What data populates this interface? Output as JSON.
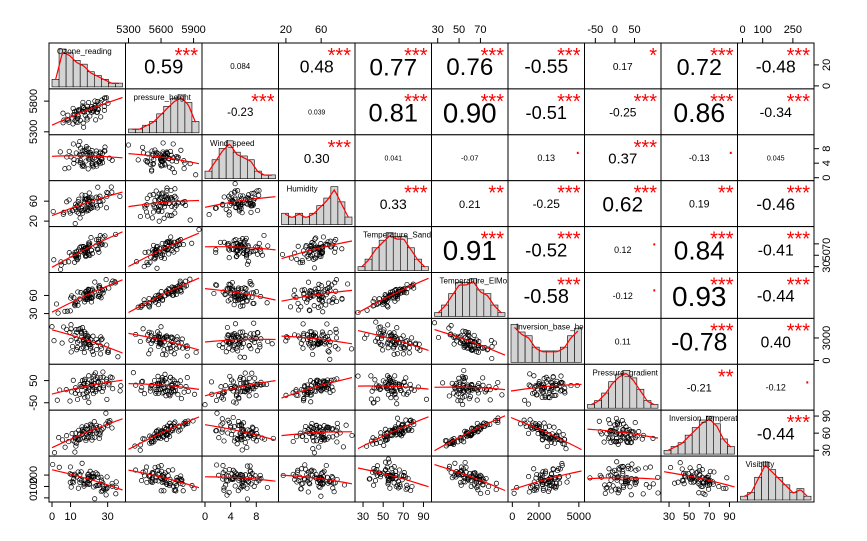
{
  "chart_data": {
    "type": "scatter",
    "variables": [
      "Ozone_reading",
      "pressure_height",
      "Wind_speed",
      "Humidity",
      "Temperature_Sandburg",
      "Temperature_ElMonte",
      "Inversion_base_height",
      "Pressure_gradient",
      "Inversion_temperature",
      "Visibility"
    ],
    "ranges": [
      [
        0,
        38
      ],
      [
        5300,
        5950
      ],
      [
        0,
        11
      ],
      [
        15,
        95
      ],
      [
        25,
        95
      ],
      [
        27,
        93
      ],
      [
        -100,
        5200
      ],
      [
        -70,
        110
      ],
      [
        25,
        95
      ],
      [
        -10,
        340
      ]
    ],
    "correlations": [
      {
        "row": 0,
        "col": 1,
        "r": "0.59",
        "sig": "***"
      },
      {
        "row": 0,
        "col": 2,
        "r": "0.084",
        "sig": ""
      },
      {
        "row": 0,
        "col": 3,
        "r": "0.48",
        "sig": "***"
      },
      {
        "row": 0,
        "col": 4,
        "r": "0.77",
        "sig": "***"
      },
      {
        "row": 0,
        "col": 5,
        "r": "0.76",
        "sig": "***"
      },
      {
        "row": 0,
        "col": 6,
        "r": "-0.55",
        "sig": "***"
      },
      {
        "row": 0,
        "col": 7,
        "r": "0.17",
        "sig": "*"
      },
      {
        "row": 0,
        "col": 8,
        "r": "0.72",
        "sig": "***"
      },
      {
        "row": 0,
        "col": 9,
        "r": "-0.48",
        "sig": "***"
      },
      {
        "row": 1,
        "col": 2,
        "r": "-0.23",
        "sig": "***"
      },
      {
        "row": 1,
        "col": 3,
        "r": "0.039",
        "sig": ""
      },
      {
        "row": 1,
        "col": 4,
        "r": "0.81",
        "sig": "***"
      },
      {
        "row": 1,
        "col": 5,
        "r": "0.90",
        "sig": "***"
      },
      {
        "row": 1,
        "col": 6,
        "r": "-0.51",
        "sig": "***"
      },
      {
        "row": 1,
        "col": 7,
        "r": "-0.25",
        "sig": "***"
      },
      {
        "row": 1,
        "col": 8,
        "r": "0.86",
        "sig": "***"
      },
      {
        "row": 1,
        "col": 9,
        "r": "-0.34",
        "sig": "***"
      },
      {
        "row": 2,
        "col": 3,
        "r": "0.30",
        "sig": "***"
      },
      {
        "row": 2,
        "col": 4,
        "r": "0.041",
        "sig": ""
      },
      {
        "row": 2,
        "col": 5,
        "r": "-0.07",
        "sig": ""
      },
      {
        "row": 2,
        "col": 6,
        "r": "0.13",
        "sig": "."
      },
      {
        "row": 2,
        "col": 7,
        "r": "0.37",
        "sig": "***"
      },
      {
        "row": 2,
        "col": 8,
        "r": "-0.13",
        "sig": "."
      },
      {
        "row": 2,
        "col": 9,
        "r": "0.045",
        "sig": ""
      },
      {
        "row": 3,
        "col": 4,
        "r": "0.33",
        "sig": "***"
      },
      {
        "row": 3,
        "col": 5,
        "r": "0.21",
        "sig": "**"
      },
      {
        "row": 3,
        "col": 6,
        "r": "-0.25",
        "sig": "***"
      },
      {
        "row": 3,
        "col": 7,
        "r": "0.62",
        "sig": "***"
      },
      {
        "row": 3,
        "col": 8,
        "r": "0.19",
        "sig": "**"
      },
      {
        "row": 3,
        "col": 9,
        "r": "-0.46",
        "sig": "***"
      },
      {
        "row": 4,
        "col": 5,
        "r": "0.91",
        "sig": "***"
      },
      {
        "row": 4,
        "col": 6,
        "r": "-0.52",
        "sig": "***"
      },
      {
        "row": 4,
        "col": 7,
        "r": "0.12",
        "sig": "."
      },
      {
        "row": 4,
        "col": 8,
        "r": "0.84",
        "sig": "***"
      },
      {
        "row": 4,
        "col": 9,
        "r": "-0.41",
        "sig": "***"
      },
      {
        "row": 5,
        "col": 6,
        "r": "-0.58",
        "sig": "***"
      },
      {
        "row": 5,
        "col": 7,
        "r": "-0.12",
        "sig": "."
      },
      {
        "row": 5,
        "col": 8,
        "r": "0.93",
        "sig": "***"
      },
      {
        "row": 5,
        "col": 9,
        "r": "-0.44",
        "sig": "***"
      },
      {
        "row": 6,
        "col": 7,
        "r": "0.11",
        "sig": ""
      },
      {
        "row": 6,
        "col": 8,
        "r": "-0.78",
        "sig": "***"
      },
      {
        "row": 6,
        "col": 9,
        "r": "0.40",
        "sig": "***"
      },
      {
        "row": 7,
        "col": 8,
        "r": "-0.21",
        "sig": "**"
      },
      {
        "row": 7,
        "col": 9,
        "r": "-0.12",
        "sig": "."
      },
      {
        "row": 8,
        "col": 9,
        "r": "-0.44",
        "sig": "***"
      }
    ],
    "histograms": [
      [
        2,
        10,
        9,
        7,
        6,
        4,
        3,
        2,
        1,
        1
      ],
      [
        1,
        1,
        2,
        3,
        5,
        7,
        9,
        10,
        8,
        3
      ],
      [
        2,
        5,
        8,
        10,
        7,
        6,
        5,
        2,
        1,
        1
      ],
      [
        3,
        2,
        3,
        2,
        3,
        5,
        7,
        10,
        6,
        2
      ],
      [
        1,
        3,
        6,
        8,
        10,
        9,
        9,
        6,
        3,
        1
      ],
      [
        1,
        3,
        6,
        9,
        9,
        10,
        7,
        6,
        3,
        1
      ],
      [
        10,
        8,
        7,
        4,
        3,
        3,
        3,
        4,
        7,
        9
      ],
      [
        1,
        2,
        4,
        7,
        9,
        10,
        8,
        5,
        2,
        1
      ],
      [
        1,
        2,
        3,
        5,
        7,
        9,
        10,
        8,
        4,
        2
      ],
      [
        1,
        2,
        6,
        10,
        8,
        6,
        4,
        2,
        3,
        1
      ]
    ],
    "axis_ticks": {
      "top": [
        {
          "var": 1,
          "ticks": [
            5300,
            5600,
            5900
          ]
        },
        {
          "var": 3,
          "ticks": [
            20,
            60
          ]
        },
        {
          "var": 5,
          "ticks": [
            30,
            50,
            70
          ]
        },
        {
          "var": 7,
          "ticks": [
            -50,
            0,
            50
          ]
        },
        {
          "var": 9,
          "ticks": [
            0,
            100,
            250
          ]
        }
      ],
      "bottom": [
        {
          "var": 0,
          "ticks": [
            0,
            10,
            30
          ]
        },
        {
          "var": 2,
          "ticks": [
            0,
            4,
            8
          ]
        },
        {
          "var": 4,
          "ticks": [
            30,
            50,
            70,
            90
          ]
        },
        {
          "var": 6,
          "ticks": [
            0,
            2000,
            5000
          ]
        },
        {
          "var": 8,
          "ticks": [
            30,
            50,
            70,
            90
          ]
        }
      ],
      "left": [
        {
          "var": 1,
          "ticks": [
            5300,
            5800
          ]
        },
        {
          "var": 3,
          "ticks": [
            20,
            60
          ]
        },
        {
          "var": 5,
          "ticks": [
            30,
            60
          ]
        },
        {
          "var": 7,
          "ticks": [
            -50,
            50
          ]
        },
        {
          "var": 9,
          "ticks": [
            0,
            100,
            200
          ]
        }
      ],
      "right": [
        {
          "var": 0,
          "ticks": [
            0,
            20
          ]
        },
        {
          "var": 2,
          "ticks": [
            0,
            4,
            8
          ]
        },
        {
          "var": 4,
          "ticks": [
            30,
            50,
            70
          ]
        },
        {
          "var": 6,
          "ticks": [
            0,
            3000
          ]
        },
        {
          "var": 8,
          "ticks": [
            30,
            60,
            90
          ]
        }
      ]
    },
    "grid": false,
    "legend": "none"
  }
}
